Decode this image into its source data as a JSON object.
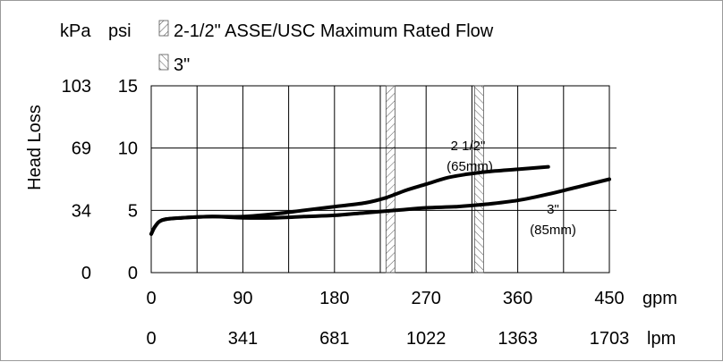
{
  "chart_data": {
    "type": "line",
    "title": "",
    "ylabel": "Head Loss",
    "y_units": [
      "kPa",
      "psi"
    ],
    "x_units": [
      "gpm",
      "lpm"
    ],
    "xlim": [
      0,
      450
    ],
    "ylim": [
      0,
      15
    ],
    "x_ticks": [
      0,
      90,
      180,
      270,
      360,
      450
    ],
    "x_tick_labels_gpm": [
      "0",
      "90",
      "180",
      "270",
      "360",
      "450"
    ],
    "x_tick_labels_lpm": [
      "0",
      "341",
      "681",
      "1022",
      "1363",
      "1703"
    ],
    "y_ticks": [
      0,
      5,
      10,
      15
    ],
    "y_tick_labels_psi": [
      "0",
      "5",
      "10",
      "15"
    ],
    "y_tick_labels_kpa": [
      "0",
      "34",
      "69",
      "103"
    ],
    "legend": [
      {
        "label": "2-1/2\" ASSE/USC Maximum Rated Flow",
        "hatch": "forward",
        "x": 235
      },
      {
        "label": "3\"",
        "hatch": "backward",
        "x": 322
      }
    ],
    "series": [
      {
        "name": "2 1/2\" (65mm)",
        "label_line1": "2 1/2\"",
        "label_line2": "(65mm)",
        "x": [
          0,
          3,
          8,
          15,
          30,
          60,
          90,
          120,
          150,
          180,
          210,
          230,
          250,
          270,
          290,
          310,
          330,
          360,
          390
        ],
        "y": [
          3.1,
          3.6,
          4.1,
          4.3,
          4.4,
          4.5,
          4.5,
          4.7,
          5.0,
          5.3,
          5.6,
          6.0,
          6.6,
          7.1,
          7.6,
          7.9,
          8.1,
          8.3,
          8.5
        ]
      },
      {
        "name": "3\" (85mm)",
        "label_line1": "3\"",
        "label_line2": "(85mm)",
        "x": [
          0,
          3,
          8,
          15,
          30,
          60,
          90,
          120,
          150,
          180,
          210,
          240,
          270,
          300,
          330,
          360,
          390,
          420,
          450
        ],
        "y": [
          3.1,
          3.6,
          4.1,
          4.3,
          4.4,
          4.5,
          4.4,
          4.4,
          4.5,
          4.6,
          4.8,
          5.0,
          5.2,
          5.3,
          5.5,
          5.8,
          6.3,
          6.9,
          7.5
        ]
      }
    ],
    "grid": true
  },
  "colors": {
    "line": "#000000",
    "grid": "#000000",
    "hatch": "#555555",
    "frame": "#9a9a9a"
  }
}
